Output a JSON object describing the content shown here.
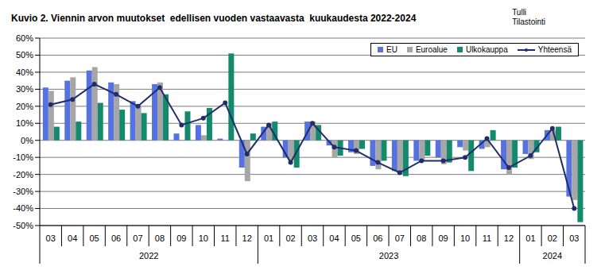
{
  "chart_data": {
    "type": "bar",
    "title": "Kuvio 2. Viennin arvon muutokset  edellisen vuoden vastaavasta  kuukaudesta 2022-2024",
    "annotations": [
      "Tulli",
      "Tilastointi"
    ],
    "categories": [
      "03",
      "04",
      "05",
      "06",
      "07",
      "08",
      "09",
      "10",
      "11",
      "12",
      "01",
      "02",
      "03",
      "04",
      "05",
      "06",
      "07",
      "08",
      "09",
      "10",
      "11",
      "12",
      "01",
      "02",
      "03"
    ],
    "year_groups": [
      {
        "label": "2022",
        "count": 10
      },
      {
        "label": "2023",
        "count": 12
      },
      {
        "label": "2024",
        "count": 3
      }
    ],
    "series": [
      {
        "name": "EU",
        "type": "bar",
        "color": "#5572e0",
        "values": [
          31,
          35,
          41,
          34,
          23,
          33,
          4,
          9,
          1,
          -16,
          8,
          -10,
          11,
          -3,
          -7,
          -15,
          -18,
          -12,
          -10,
          -4,
          -5,
          -17,
          -8,
          6,
          -33
        ]
      },
      {
        "name": "Euroalue",
        "type": "bar",
        "color": "#a6a6a6",
        "values": [
          29,
          37,
          43,
          33,
          20,
          34,
          0,
          3,
          0,
          -24,
          10,
          -12,
          11,
          -10,
          -8,
          -17,
          -20,
          -12,
          -14,
          -6,
          -4,
          -20,
          -11,
          6,
          -35
        ]
      },
      {
        "name": "Ulkokauppa",
        "type": "bar",
        "color": "#138a6c",
        "values": [
          8,
          11,
          22,
          18,
          16,
          27,
          17,
          19,
          51,
          4,
          11,
          -16,
          9,
          -9,
          -5,
          -12,
          -21,
          -9,
          -13,
          -18,
          6,
          -16,
          -7,
          8,
          -48
        ]
      },
      {
        "name": "Yhteensä",
        "type": "line",
        "color": "#1f2d6b",
        "marker": "circle",
        "values": [
          21,
          24,
          33,
          27,
          20,
          31,
          9,
          13,
          22,
          -8,
          9,
          -13,
          10,
          -4,
          -6,
          -13,
          -19,
          -12,
          -12,
          -10,
          1,
          -16,
          -9,
          7,
          -40
        ]
      }
    ],
    "ylim": [
      -50,
      60
    ],
    "yticks": [
      {
        "value": -50,
        "label": "-50%"
      },
      {
        "value": -40,
        "label": "-40%"
      },
      {
        "value": -30,
        "label": "-30%"
      },
      {
        "value": -20,
        "label": "-20%"
      },
      {
        "value": -10,
        "label": "-10%"
      },
      {
        "value": 0,
        "label": "0%"
      },
      {
        "value": 10,
        "label": "10%"
      },
      {
        "value": 20,
        "label": "20%"
      },
      {
        "value": 30,
        "label": "30%"
      },
      {
        "value": 40,
        "label": "40%"
      },
      {
        "value": 50,
        "label": "50%"
      },
      {
        "value": 60,
        "label": "60%"
      }
    ],
    "grid": true,
    "legend": "top-right"
  }
}
